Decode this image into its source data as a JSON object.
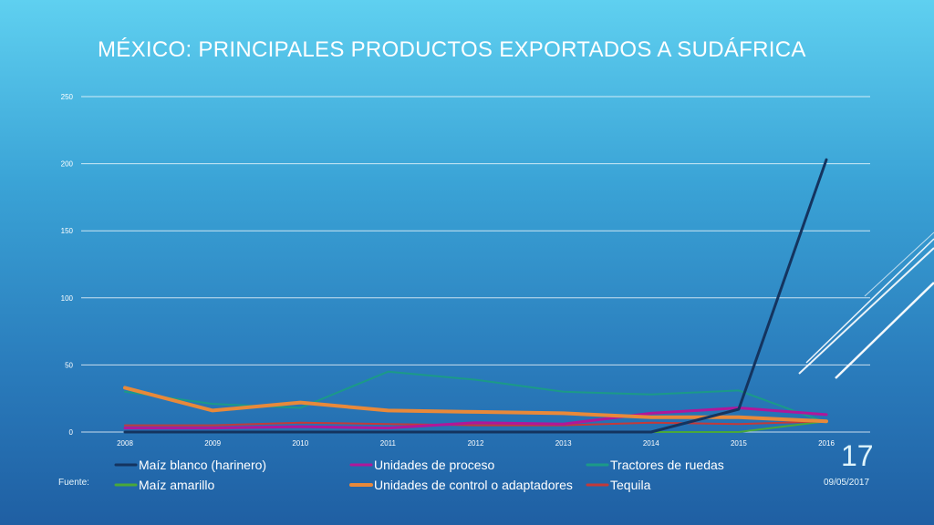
{
  "slide": {
    "title": "MÉXICO: PRINCIPALES PRODUCTOS EXPORTADOS A SUDÁFRICA",
    "source_label": "Fuente:",
    "date": "09/05/2017",
    "page_number": "17"
  },
  "colors": {
    "decor_lines": "#ffffff",
    "grid": "#ffffff"
  },
  "chart_data": {
    "type": "line",
    "title": "",
    "xlabel": "",
    "ylabel": "",
    "categories": [
      "2008",
      "2009",
      "2010",
      "2011",
      "2012",
      "2013",
      "2014",
      "2015",
      "2016"
    ],
    "ylim": [
      0,
      250
    ],
    "yticks": [
      "0",
      "50",
      "100",
      "150",
      "200",
      "250"
    ],
    "grid": true,
    "legend_position": "bottom",
    "series": [
      {
        "name": "Maíz blanco (harinero)",
        "color": "#14345f",
        "width": 3,
        "values": [
          0,
          0,
          0,
          0,
          0,
          0,
          0,
          17,
          203
        ]
      },
      {
        "name": "Unidades de proceso",
        "color": "#b0179a",
        "width": 3,
        "values": [
          3,
          3,
          4,
          3,
          7,
          6,
          14,
          18,
          13
        ]
      },
      {
        "name": "Tractores de ruedas",
        "color": "#1b9a88",
        "width": 2,
        "values": [
          30,
          21,
          18,
          45,
          39,
          30,
          28,
          31,
          7
        ]
      },
      {
        "name": "Maíz amarillo",
        "color": "#4aa83a",
        "width": 2,
        "values": [
          0,
          0,
          0,
          0,
          0,
          0,
          0,
          0,
          8
        ]
      },
      {
        "name": "Unidades de control o adaptadores",
        "color": "#e8893a",
        "width": 4,
        "values": [
          33,
          16,
          22,
          16,
          15,
          14,
          11,
          11,
          8
        ]
      },
      {
        "name": "Tequila",
        "color": "#c23a3a",
        "width": 2,
        "values": [
          5,
          5,
          7,
          6,
          5,
          5,
          7,
          6,
          8
        ]
      }
    ]
  }
}
